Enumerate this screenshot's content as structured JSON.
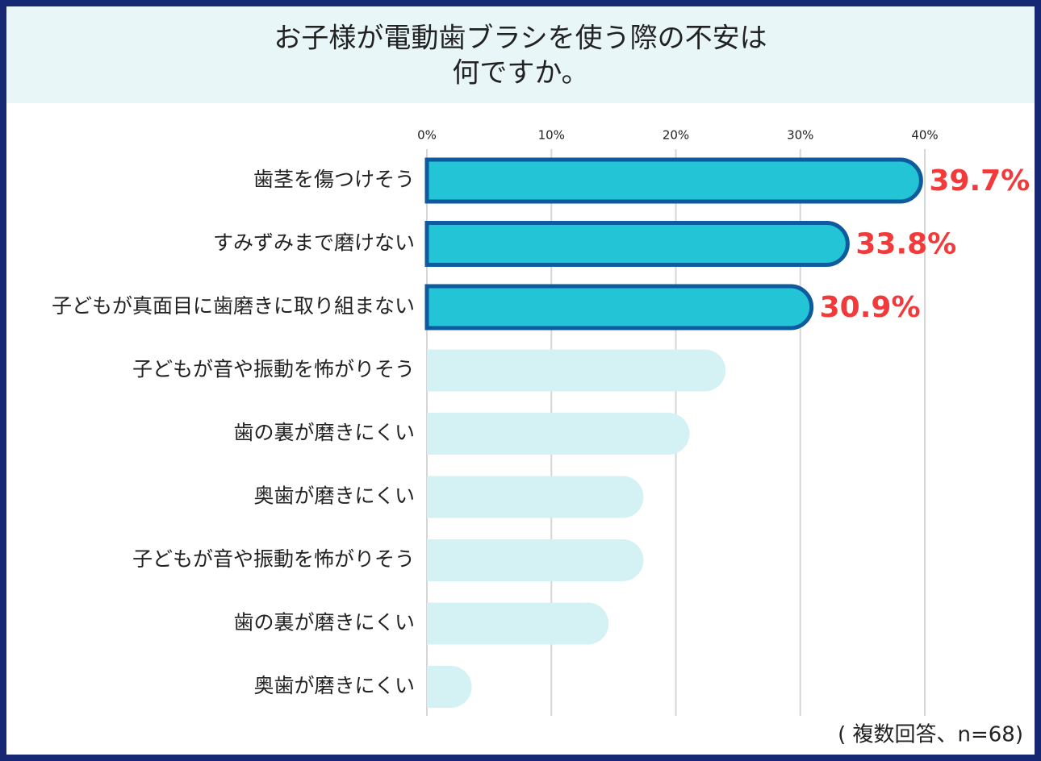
{
  "chart_data": {
    "type": "barh",
    "title": [
      "お子様が電動歯ブラシを使う際の不安は",
      "何ですか。"
    ],
    "categories": [
      "歯茎を傷つけそう",
      "すみずみまで磨けない",
      "子どもが真面目に歯磨きに取り組まない",
      "子どもが音や振動を怖がりそう",
      "歯の裏が磨きにくい",
      "奥歯が磨きにくい",
      "子どもが音や振動を怖がりそう",
      "歯の裏が磨きにくい",
      "奥歯が磨きにくい"
    ],
    "values": [
      39.7,
      33.8,
      30.9,
      24.0,
      21.1,
      17.4,
      17.4,
      14.6,
      3.6
    ],
    "value_labels": [
      "39.7%",
      "33.8%",
      "30.9%",
      null,
      null,
      null,
      null,
      null,
      null
    ],
    "colors": [
      "#22c4d6",
      "#22c4d6",
      "#22c4d6",
      "#d4f1f4",
      "#d4f1f4",
      "#d4f1f4",
      "#d4f1f4",
      "#d4f1f4",
      "#d4f1f4"
    ],
    "edgecolors": [
      "#0d5a9e",
      "#0d5a9e",
      "#0d5a9e",
      null,
      null,
      null,
      null,
      null,
      null
    ],
    "label_color": "#f23a3a",
    "xlim": [
      0,
      40
    ],
    "xticks": [
      {
        "value": 0,
        "label": "0%"
      },
      {
        "value": 10,
        "label": "10%"
      },
      {
        "value": 20,
        "label": "20%"
      },
      {
        "value": 30,
        "label": "30%"
      },
      {
        "value": 40,
        "label": "40%"
      }
    ],
    "grid": true,
    "note": "( 複数回答、n=68)"
  }
}
